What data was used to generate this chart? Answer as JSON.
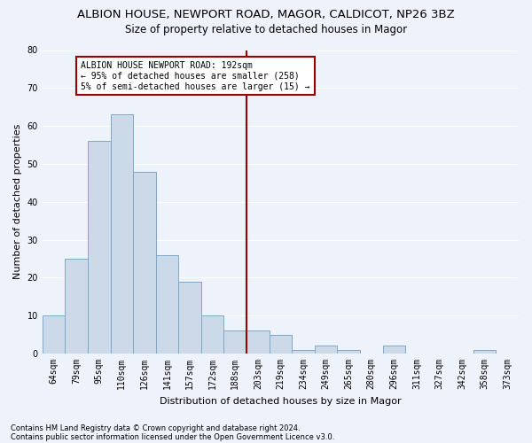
{
  "title": "ALBION HOUSE, NEWPORT ROAD, MAGOR, CALDICOT, NP26 3BZ",
  "subtitle": "Size of property relative to detached houses in Magor",
  "xlabel": "Distribution of detached houses by size in Magor",
  "ylabel": "Number of detached properties",
  "footer1": "Contains HM Land Registry data © Crown copyright and database right 2024.",
  "footer2": "Contains public sector information licensed under the Open Government Licence v3.0.",
  "categories": [
    "64sqm",
    "79sqm",
    "95sqm",
    "110sqm",
    "126sqm",
    "141sqm",
    "157sqm",
    "172sqm",
    "188sqm",
    "203sqm",
    "219sqm",
    "234sqm",
    "249sqm",
    "265sqm",
    "280sqm",
    "296sqm",
    "311sqm",
    "327sqm",
    "342sqm",
    "358sqm",
    "373sqm"
  ],
  "values": [
    10,
    25,
    56,
    63,
    48,
    26,
    19,
    10,
    6,
    6,
    5,
    1,
    2,
    1,
    0,
    2,
    0,
    0,
    0,
    1,
    0
  ],
  "bar_color": "#ccd9e8",
  "bar_edge_color": "#7fa8c8",
  "vline_color": "#990000",
  "annotation_title": "ALBION HOUSE NEWPORT ROAD: 192sqm",
  "annotation_line1": "← 95% of detached houses are smaller (258)",
  "annotation_line2": "5% of semi-detached houses are larger (15) →",
  "annotation_box_color": "#ffffff",
  "annotation_box_edge": "#990000",
  "ylim": [
    0,
    80
  ],
  "yticks": [
    0,
    10,
    20,
    30,
    40,
    50,
    60,
    70,
    80
  ],
  "background_color": "#eef2fa",
  "grid_color": "#ffffff",
  "title_fontsize": 9.5,
  "subtitle_fontsize": 8.5,
  "xlabel_fontsize": 8,
  "ylabel_fontsize": 8,
  "tick_fontsize": 7,
  "footer_fontsize": 6,
  "annotation_fontsize": 7
}
